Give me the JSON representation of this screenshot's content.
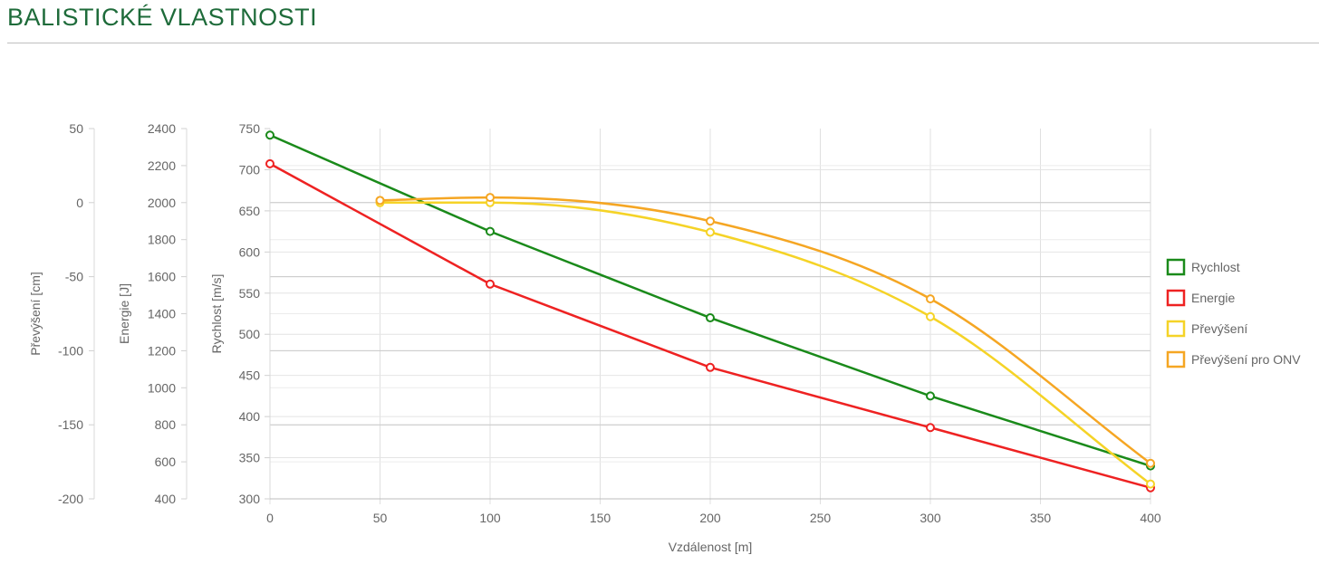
{
  "page": {
    "title": "BALISTICKÉ VLASTNOSTI"
  },
  "chart_data": {
    "type": "line",
    "xlabel": "Vzdálenost [m]",
    "x_ticks": [
      0,
      50,
      100,
      150,
      200,
      250,
      300,
      350,
      400
    ],
    "xlim": [
      0,
      400
    ],
    "grid": true,
    "legend_position": "right",
    "y_axes": [
      {
        "id": "rychlost",
        "label": "Rychlost [m/s]",
        "ylim": [
          300,
          750
        ],
        "ticks": [
          300,
          350,
          400,
          450,
          500,
          550,
          600,
          650,
          700,
          750
        ]
      },
      {
        "id": "energie",
        "label": "Energie [J]",
        "ylim": [
          400,
          2400
        ],
        "ticks": [
          400,
          600,
          800,
          1000,
          1200,
          1400,
          1600,
          1800,
          2000,
          2200,
          2400
        ]
      },
      {
        "id": "prevyseni",
        "label": "Převýšení [cm]",
        "ylim": [
          -200,
          50
        ],
        "ticks": [
          -200,
          -150,
          -100,
          -50,
          0,
          50
        ]
      }
    ],
    "series": [
      {
        "name": "Rychlost",
        "axis": "rychlost",
        "color": "#1a8a1a",
        "smooth": false,
        "x": [
          0,
          100,
          200,
          300,
          400
        ],
        "values": [
          742,
          625,
          520,
          425,
          340
        ]
      },
      {
        "name": "Energie",
        "axis": "energie",
        "color": "#ee2222",
        "smooth": false,
        "x": [
          0,
          100,
          200,
          300,
          400
        ],
        "values": [
          2210,
          1560,
          1110,
          785,
          460
        ]
      },
      {
        "name": "Převýšení",
        "axis": "prevyseni",
        "color": "#f5d327",
        "smooth": true,
        "x": [
          50,
          100,
          200,
          300,
          400
        ],
        "values": [
          0,
          0,
          -20,
          -77,
          -190
        ]
      },
      {
        "name": "Převýšení pro ONV",
        "axis": "prevyseni",
        "color": "#f5a623",
        "smooth": true,
        "x": [
          50,
          100,
          200,
          300,
          400
        ],
        "values": [
          1.5,
          3.5,
          -12.5,
          -65,
          -176
        ]
      }
    ]
  }
}
